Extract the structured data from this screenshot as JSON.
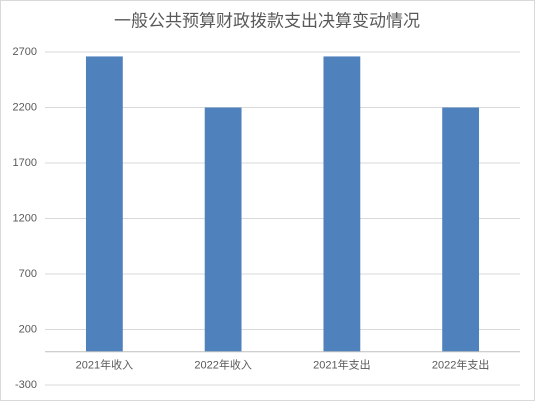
{
  "chart_data": {
    "type": "bar",
    "title": "一般公共预算财政拨款支出决算变动情况",
    "categories": [
      "2021年收入",
      "2022年收入",
      "2021年支出",
      "2022年支出"
    ],
    "values": [
      2660,
      2200,
      2660,
      2200
    ],
    "color": "#4f81bd",
    "ylim": [
      -300,
      2700
    ],
    "yticks": [
      -300,
      200,
      700,
      1200,
      1700,
      2200,
      2700
    ],
    "grid": true
  }
}
